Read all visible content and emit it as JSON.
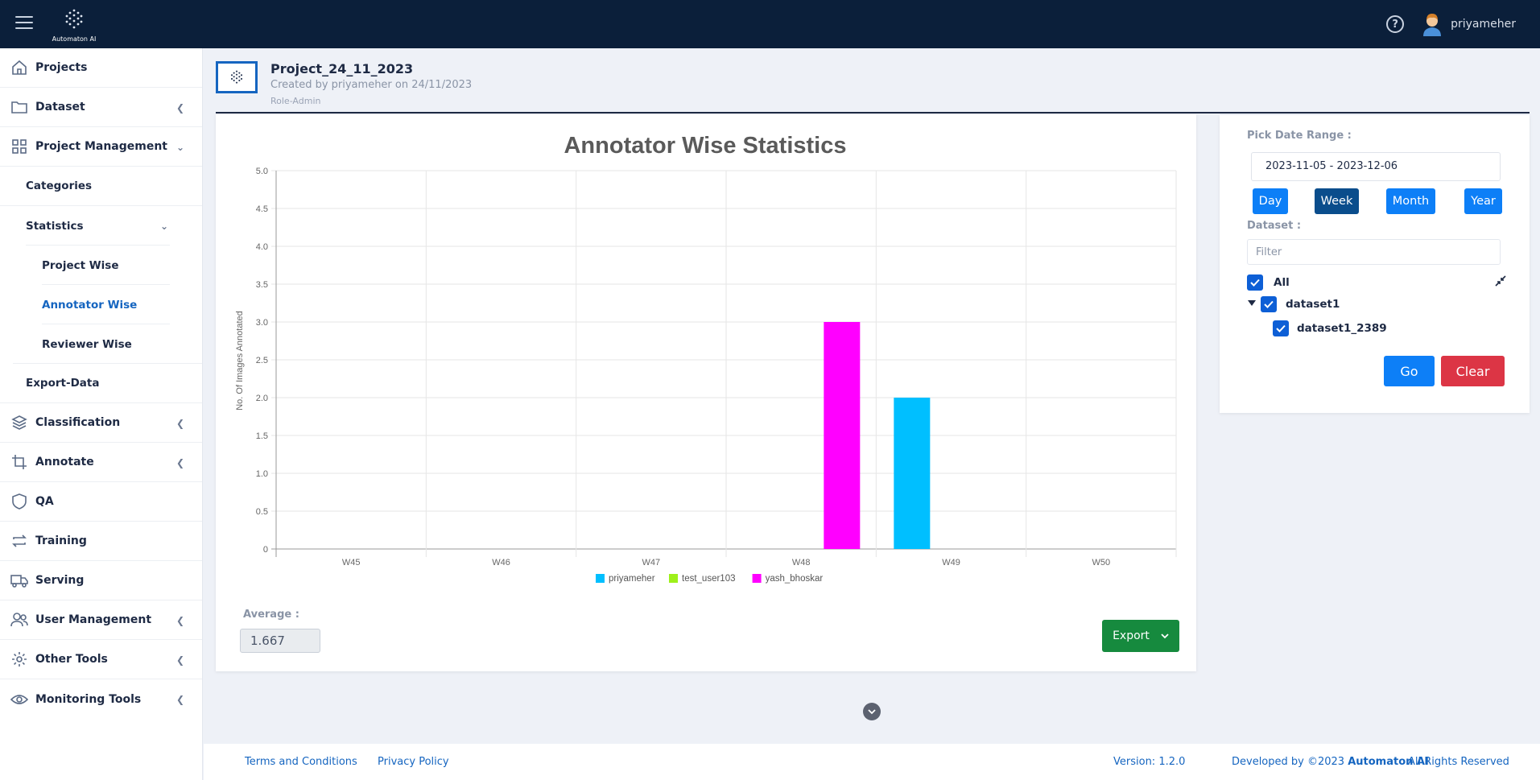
{
  "topbar": {
    "logo_text": "Automaton AI",
    "username": "priyameher"
  },
  "sidebar": {
    "items": [
      {
        "label": "Projects",
        "icon": "home-icon"
      },
      {
        "label": "Dataset",
        "icon": "folder-icon"
      },
      {
        "label": "Project Management",
        "icon": "grid-icon"
      },
      {
        "label": "Categories"
      },
      {
        "label": "Statistics"
      },
      {
        "label": "Project Wise"
      },
      {
        "label": "Annotator Wise"
      },
      {
        "label": "Reviewer Wise"
      },
      {
        "label": "Export-Data"
      },
      {
        "label": "Classification",
        "icon": "layers-icon"
      },
      {
        "label": "Annotate",
        "icon": "crop-icon"
      },
      {
        "label": "QA",
        "icon": "shield-icon"
      },
      {
        "label": "Training",
        "icon": "repeat-icon"
      },
      {
        "label": "Serving",
        "icon": "truck-icon"
      },
      {
        "label": "User Management",
        "icon": "users-icon"
      },
      {
        "label": "Other Tools",
        "icon": "gear-icon"
      },
      {
        "label": "Monitoring Tools",
        "icon": "eye-icon"
      }
    ]
  },
  "project": {
    "title": "Project_24_11_2023",
    "created": "Created by priyameher on 24/11/2023",
    "role": "Role-Admin"
  },
  "chart_data": {
    "type": "bar",
    "title": "Annotator Wise Statistics",
    "ylabel": "No. Of Images Annotated",
    "xlabel": "",
    "categories": [
      "W45",
      "W46",
      "W47",
      "W48",
      "W49",
      "W50"
    ],
    "ylim": [
      0,
      5
    ],
    "yticks": [
      "0",
      "0.5",
      "1.0",
      "1.5",
      "2.0",
      "2.5",
      "3.0",
      "3.5",
      "4.0",
      "4.5",
      "5.0"
    ],
    "series": [
      {
        "name": "priyameher",
        "color": "#00bfff",
        "values": [
          0,
          0,
          0,
          0,
          2,
          0
        ]
      },
      {
        "name": "test_user103",
        "color": "#9ef01a",
        "values": [
          0,
          0,
          0,
          0,
          0,
          0
        ]
      },
      {
        "name": "yash_bhoskar",
        "color": "#ff00ff",
        "values": [
          0,
          0,
          0,
          3,
          0,
          0
        ]
      }
    ],
    "grid": true,
    "legend": "bottom"
  },
  "stats": {
    "average_label": "Average :",
    "average_value": "1.667",
    "export_label": "Export"
  },
  "panel": {
    "date_label": "Pick Date Range :",
    "date_value": "2023-11-05 - 2023-12-06",
    "ranges": [
      "Day",
      "Week",
      "Month",
      "Year"
    ],
    "active_range": "Week",
    "dataset_label": "Dataset :",
    "filter_placeholder": "Filter",
    "tree": {
      "all": "All",
      "dataset": "dataset1",
      "child": "dataset1_2389"
    },
    "go_label": "Go",
    "clear_label": "Clear"
  },
  "footer": {
    "terms": "Terms and Conditions",
    "privacy": "Privacy Policy",
    "version": "Version: 1.2.0",
    "developed_prefix": "Developed by ©2023 ",
    "developed_brand": "Automaton AI",
    "rights": "All Rights Reserved"
  }
}
